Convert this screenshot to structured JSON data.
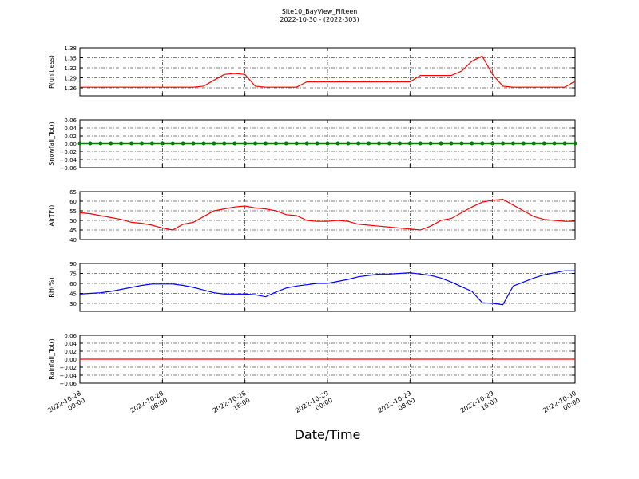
{
  "title": "Site10_BayView_Fifteen",
  "subtitle": "2022-10-30 - (2022-303)",
  "xlabel": "Date/Time",
  "xlim": [
    "2022-10-28 00:00",
    "2022-10-30 00:00"
  ],
  "xticks": [
    "2022-10-28 00:00",
    "2022-10-28 08:00",
    "2022-10-28 16:00",
    "2022-10-29 00:00",
    "2022-10-29 08:00",
    "2022-10-29 16:00",
    "2022-10-30 00:00"
  ],
  "x": [
    "2022-10-28 00:00",
    "2022-10-28 01:00",
    "2022-10-28 02:00",
    "2022-10-28 03:00",
    "2022-10-28 04:00",
    "2022-10-28 05:00",
    "2022-10-28 06:00",
    "2022-10-28 07:00",
    "2022-10-28 08:00",
    "2022-10-28 09:00",
    "2022-10-28 10:00",
    "2022-10-28 11:00",
    "2022-10-28 12:00",
    "2022-10-28 13:00",
    "2022-10-28 14:00",
    "2022-10-28 15:00",
    "2022-10-28 16:00",
    "2022-10-28 17:00",
    "2022-10-28 18:00",
    "2022-10-28 19:00",
    "2022-10-28 20:00",
    "2022-10-28 21:00",
    "2022-10-28 22:00",
    "2022-10-28 23:00",
    "2022-10-29 00:00",
    "2022-10-29 01:00",
    "2022-10-29 02:00",
    "2022-10-29 03:00",
    "2022-10-29 04:00",
    "2022-10-29 05:00",
    "2022-10-29 06:00",
    "2022-10-29 07:00",
    "2022-10-29 08:00",
    "2022-10-29 09:00",
    "2022-10-29 10:00",
    "2022-10-29 11:00",
    "2022-10-29 12:00",
    "2022-10-29 13:00",
    "2022-10-29 14:00",
    "2022-10-29 15:00",
    "2022-10-29 16:00",
    "2022-10-29 17:00",
    "2022-10-29 18:00",
    "2022-10-29 19:00",
    "2022-10-29 20:00",
    "2022-10-29 21:00",
    "2022-10-29 22:00",
    "2022-10-29 23:00",
    "2022-10-30 00:00"
  ],
  "chart_data": [
    {
      "type": "line",
      "ylabel": "P(unitless)",
      "ylim": [
        1.236,
        1.38
      ],
      "yticks": [
        1.26,
        1.29,
        1.32,
        1.35,
        1.38
      ],
      "grid": true,
      "series": [
        {
          "color": "#ff0000",
          "values": [
            1.262,
            1.262,
            1.262,
            1.262,
            1.262,
            1.262,
            1.262,
            1.262,
            1.262,
            1.262,
            1.262,
            1.262,
            1.265,
            1.283,
            1.3,
            1.303,
            1.3,
            1.265,
            1.262,
            1.262,
            1.262,
            1.262,
            1.278,
            1.278,
            1.278,
            1.278,
            1.278,
            1.278,
            1.278,
            1.278,
            1.278,
            1.278,
            1.278,
            1.297,
            1.297,
            1.297,
            1.297,
            1.31,
            1.34,
            1.355,
            1.3,
            1.265,
            1.262,
            1.262,
            1.262,
            1.262,
            1.262,
            1.262,
            1.28
          ]
        }
      ]
    },
    {
      "type": "line",
      "ylabel": "Snowfall_Tot()",
      "ylim": [
        -0.06,
        0.06
      ],
      "yticks": [
        {
          "value": -0.06,
          "label": "−0.06"
        },
        {
          "value": -0.04,
          "label": "−0.04"
        },
        {
          "value": -0.02,
          "label": "−0.02"
        },
        {
          "value": 0,
          "label": "0.00"
        },
        0.02,
        0.04,
        0.06
      ],
      "grid": true,
      "markers": true,
      "series": [
        {
          "color": "#008000",
          "values": [
            0,
            0,
            0,
            0,
            0,
            0,
            0,
            0,
            0,
            0,
            0,
            0,
            0,
            0,
            0,
            0,
            0,
            0,
            0,
            0,
            0,
            0,
            0,
            0,
            0,
            0,
            0,
            0,
            0,
            0,
            0,
            0,
            0,
            0,
            0,
            0,
            0,
            0,
            0,
            0,
            0,
            0,
            0,
            0,
            0,
            0,
            0,
            0,
            0
          ]
        }
      ]
    },
    {
      "type": "line",
      "ylabel": "AirTF()",
      "ylim": [
        40,
        65
      ],
      "yticks": [
        40,
        45,
        50,
        55,
        60,
        65
      ],
      "grid": true,
      "series": [
        {
          "color": "#ff0000",
          "values": [
            54,
            53.5,
            52.5,
            51.5,
            50.5,
            49,
            48.5,
            47.5,
            46,
            45,
            48,
            49,
            52,
            55,
            56,
            57,
            57.5,
            56.5,
            56,
            55,
            53,
            52.5,
            50,
            49.5,
            49.5,
            50,
            49.5,
            48,
            47.5,
            47,
            46.5,
            46,
            45.5,
            45,
            47,
            50,
            51,
            54,
            57,
            59.5,
            60.5,
            61,
            58,
            55,
            52,
            50.5,
            50,
            49.5,
            49.5
          ]
        }
      ]
    },
    {
      "type": "line",
      "ylabel": "RH(%)",
      "ylim": [
        18,
        90
      ],
      "yticks": [
        30,
        45,
        60,
        75,
        90
      ],
      "grid": true,
      "series": [
        {
          "color": "#0000ff",
          "values": [
            44,
            45,
            46,
            48,
            51,
            54,
            57,
            59,
            59,
            59,
            57,
            54,
            50,
            46,
            44,
            44,
            44,
            43,
            40,
            47,
            53,
            56,
            58,
            60,
            60,
            63,
            66,
            70,
            72,
            74,
            74,
            75,
            76,
            74,
            72,
            68,
            62,
            55,
            48,
            31,
            30,
            28,
            56,
            62,
            68,
            73,
            76,
            79,
            79
          ]
        }
      ]
    },
    {
      "type": "line",
      "ylabel": "Rainfall_Tot()",
      "ylim": [
        -0.06,
        0.06
      ],
      "yticks": [
        {
          "value": -0.06,
          "label": "−0.06"
        },
        {
          "value": -0.04,
          "label": "−0.04"
        },
        {
          "value": -0.02,
          "label": "−0.02"
        },
        {
          "value": 0,
          "label": "0.00"
        },
        0.02,
        0.04,
        0.06
      ],
      "grid": true,
      "series": [
        {
          "color": "#ff0000",
          "values": [
            0,
            0,
            0,
            0,
            0,
            0,
            0,
            0,
            0,
            0,
            0,
            0,
            0,
            0,
            0,
            0,
            0,
            0,
            0,
            0,
            0,
            0,
            0,
            0,
            0,
            0,
            0,
            0,
            0,
            0,
            0,
            0,
            0,
            0,
            0,
            0,
            0,
            0,
            0,
            0,
            0,
            0,
            0,
            0,
            0,
            0,
            0,
            0,
            0
          ]
        }
      ]
    }
  ]
}
